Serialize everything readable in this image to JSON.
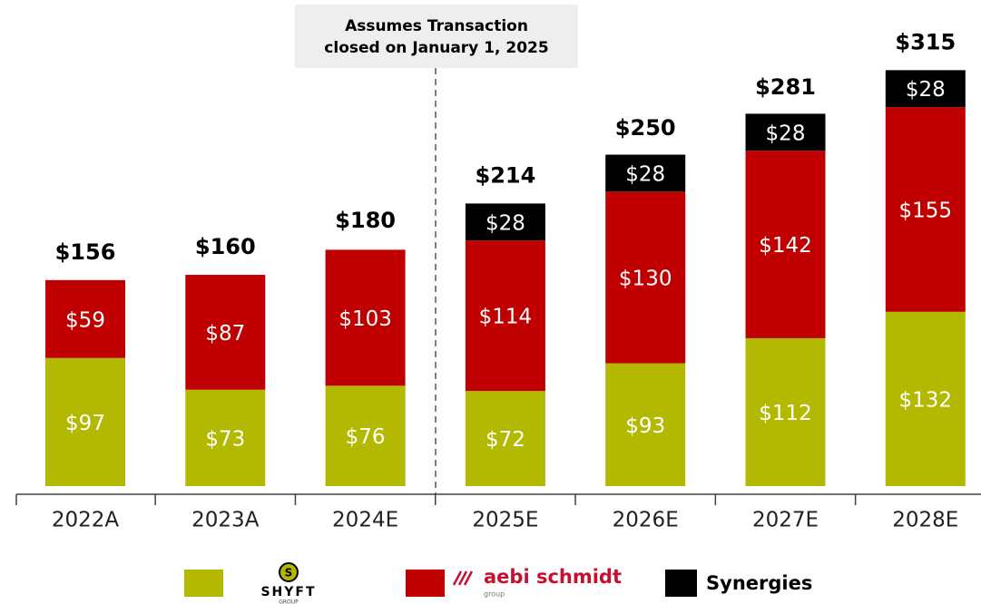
{
  "chart_data": {
    "type": "stacked_bar",
    "annotation": {
      "lines": [
        "Assumes Transaction",
        "closed on January 1, 2025"
      ]
    },
    "categories": [
      "2022A",
      "2023A",
      "2024E",
      "2025E",
      "2026E",
      "2027E",
      "2028E"
    ],
    "series": [
      {
        "name": "SHYFT",
        "logo_mark": "S",
        "logo_sub": "GROUP",
        "color": "#b3b800",
        "values": [
          97,
          73,
          76,
          72,
          93,
          112,
          132
        ],
        "value_labels": [
          "$97",
          "$73",
          "$76",
          "$72",
          "$93",
          "$112",
          "$132"
        ]
      },
      {
        "name": "aebi schmidt",
        "logo_sub": "group",
        "color": "#c00000",
        "values": [
          59,
          87,
          103,
          114,
          130,
          142,
          155
        ],
        "value_labels": [
          "$59",
          "$87",
          "$103",
          "$114",
          "$130",
          "$142",
          "$155"
        ]
      },
      {
        "name": "Synergies",
        "color": "#000000",
        "values": [
          null,
          null,
          null,
          28,
          28,
          28,
          28
        ],
        "value_labels": [
          null,
          null,
          null,
          "$28",
          "$28",
          "$28",
          "$28"
        ]
      }
    ],
    "totals": {
      "values": [
        156,
        160,
        180,
        214,
        250,
        281,
        315
      ],
      "value_labels": [
        "$156",
        "$160",
        "$180",
        "$214",
        "$250",
        "$281",
        "$315"
      ]
    }
  }
}
